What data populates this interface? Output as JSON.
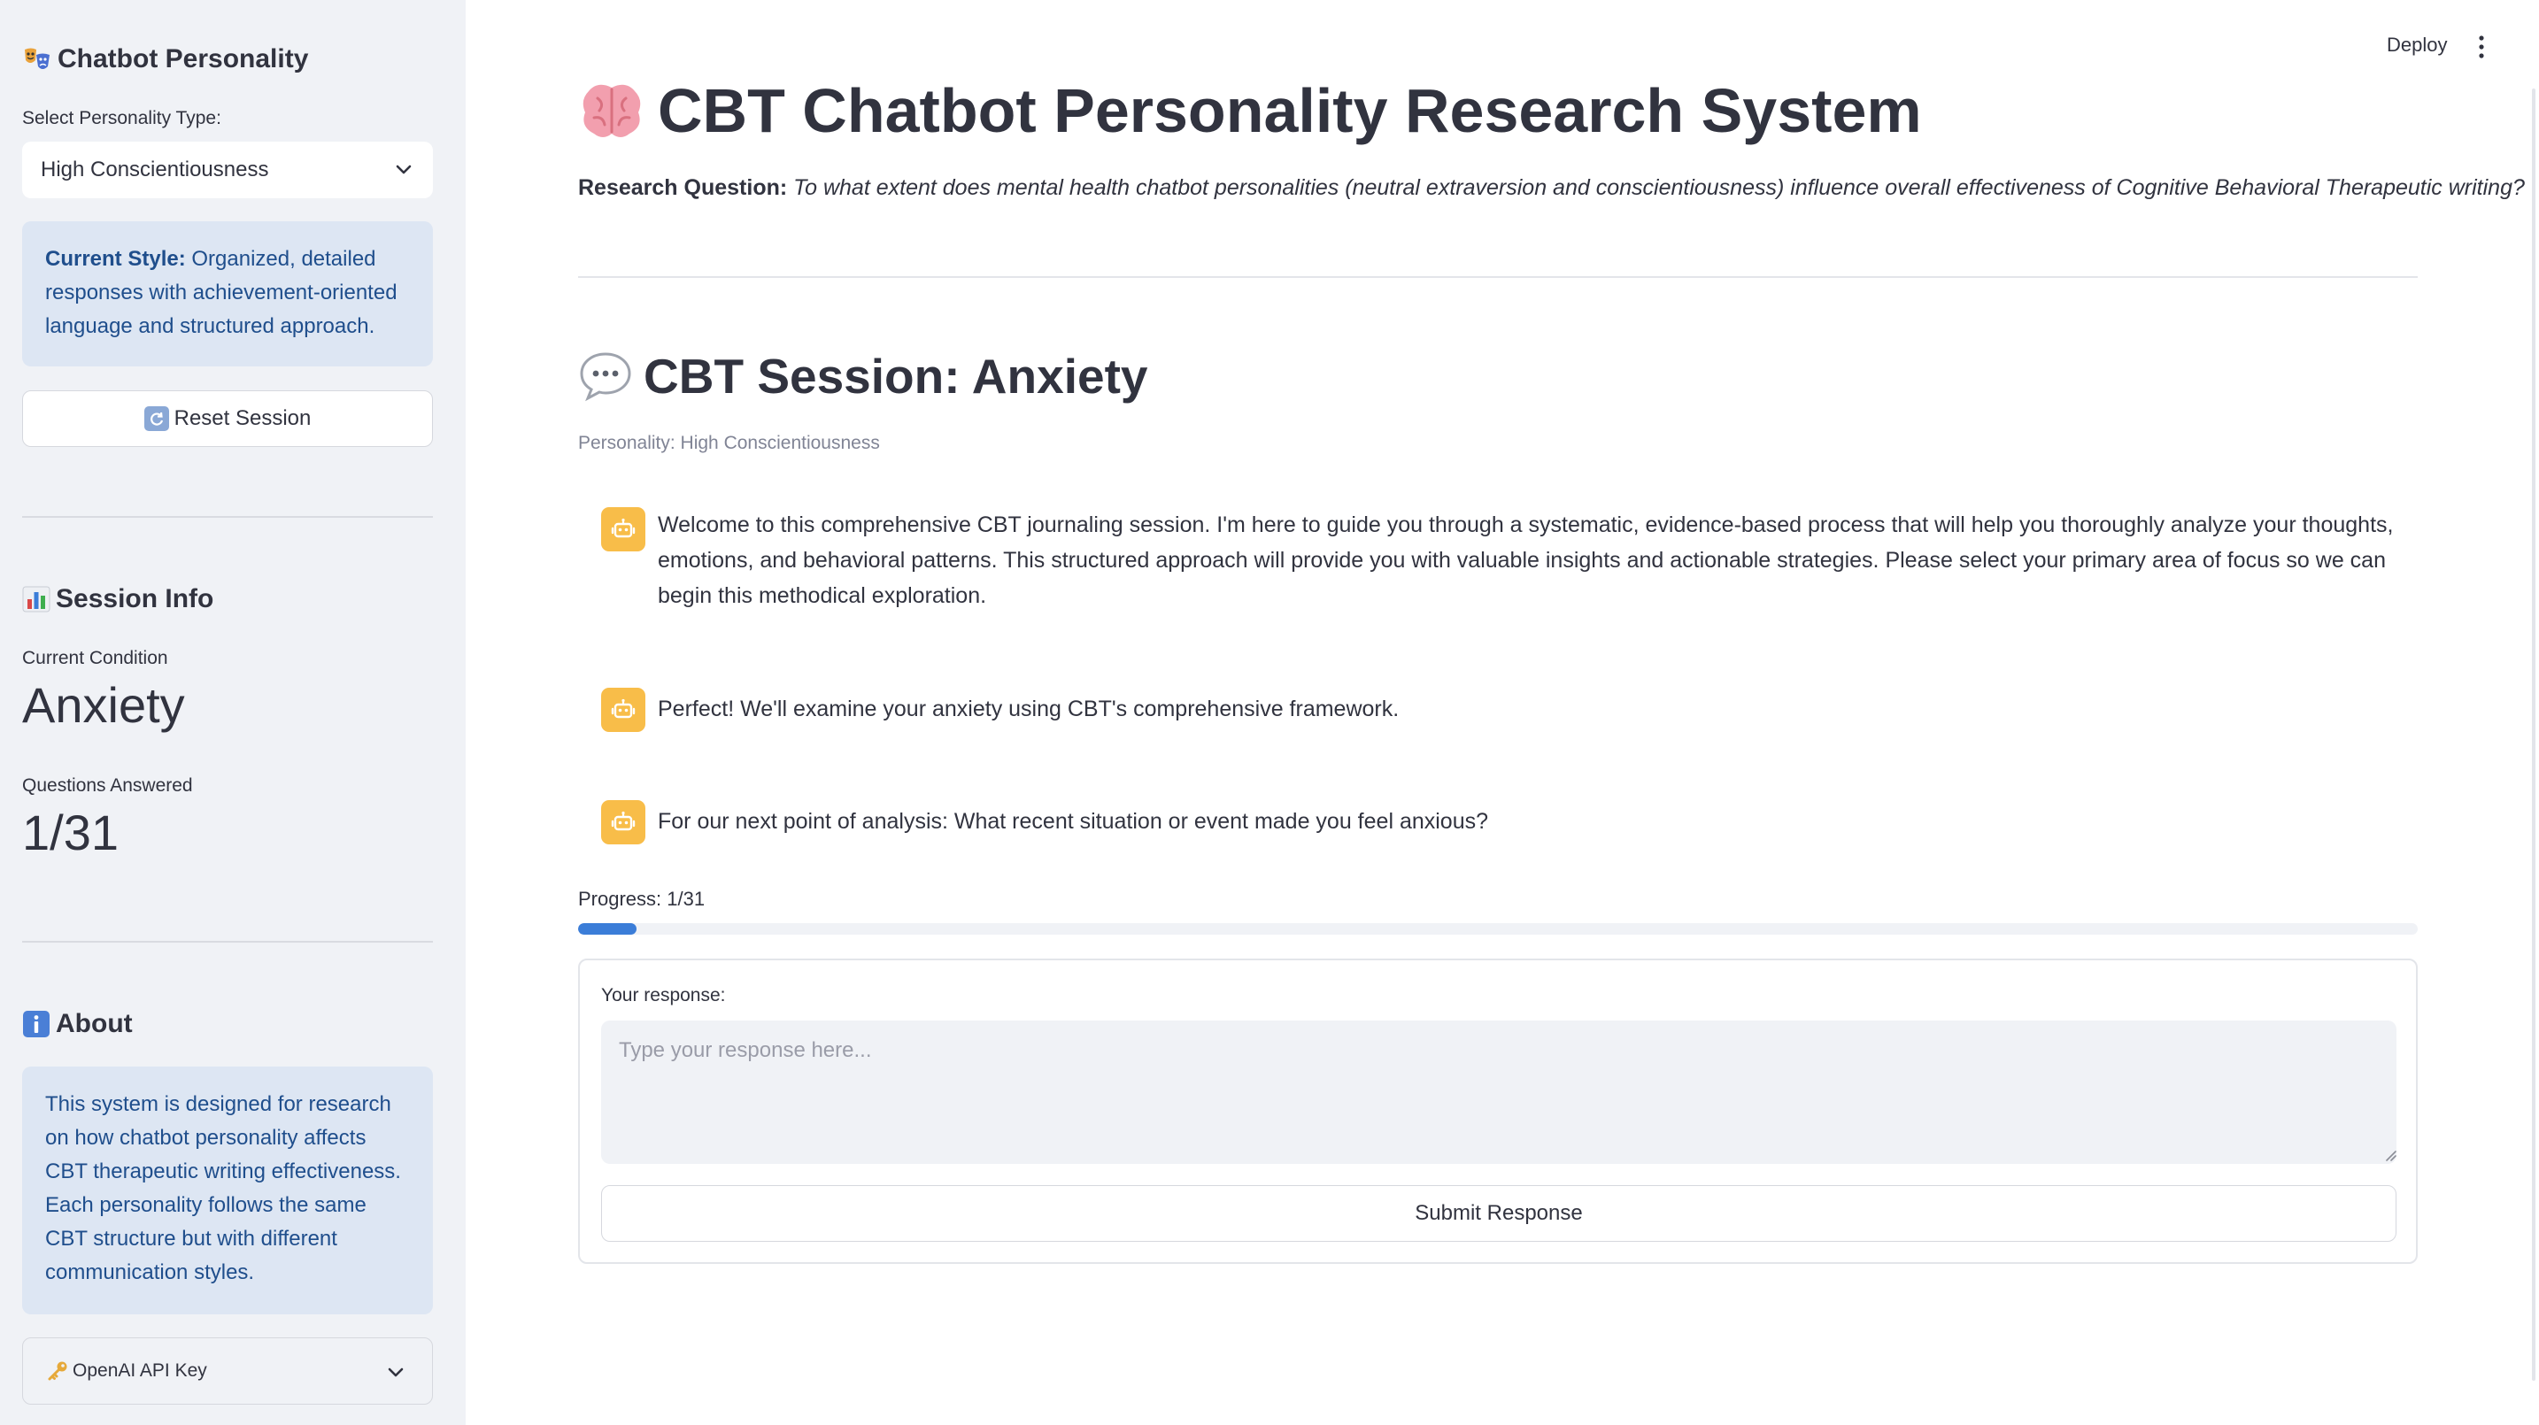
{
  "sidebar": {
    "personality_header": {
      "icon": "theater-masks-icon",
      "title": "Chatbot Personality"
    },
    "select_label": "Select Personality Type:",
    "select_value": "High Conscientiousness",
    "current_style": {
      "label": "Current Style:",
      "text": "Organized, detailed responses with achievement-oriented language and structured approach."
    },
    "reset_button": {
      "icon": "refresh-icon",
      "label": "Reset Session"
    },
    "session_info": {
      "icon": "bar-chart-icon",
      "title": "Session Info",
      "condition_label": "Current Condition",
      "condition_value": "Anxiety",
      "answered_label": "Questions Answered",
      "answered_value": "1/31"
    },
    "about": {
      "icon": "info-icon",
      "title": "About",
      "text": "This system is designed for research on how chatbot personality affects CBT therapeutic writing effectiveness. Each personality follows the same CBT structure but with different communication styles."
    },
    "api_key_expander": {
      "icon": "key-icon",
      "label": "OpenAI API Key"
    }
  },
  "header": {
    "deploy_label": "Deploy",
    "menu_icon": "kebab-menu-icon"
  },
  "main": {
    "title_icon": "brain-icon",
    "title": "CBT Chatbot Personality Research System",
    "research_question_label": "Research Question:",
    "research_question_text": "To what extent does mental health chatbot personalities (neutral extraversion and conscientiousness) influence overall effectiveness of Cognitive Behavioral Therapeutic writing?",
    "session_icon": "speech-bubble-icon",
    "session_title": "CBT Session: Anxiety",
    "personality_caption": "Personality: High Conscientiousness",
    "messages": [
      {
        "avatar": "robot-icon",
        "text": "Welcome to this comprehensive CBT journaling session. I'm here to guide you through a systematic, evidence-based process that will help you thoroughly analyze your thoughts, emotions, and behavioral patterns. This structured approach will provide you with valuable insights and actionable strategies. Please select your primary area of focus so we can begin this methodical exploration."
      },
      {
        "avatar": "robot-icon",
        "text": "Perfect! We'll examine your anxiety using CBT's comprehensive framework."
      },
      {
        "avatar": "robot-icon",
        "text": "For our next point of analysis: What recent situation or event made you feel anxious?"
      }
    ],
    "progress": {
      "label": "Progress: 1/31",
      "fraction": 0.032
    },
    "response_form": {
      "label": "Your response:",
      "placeholder": "Type your response here...",
      "value": "",
      "submit_label": "Submit Response"
    }
  },
  "colors": {
    "sidebar_bg": "#f0f2f6",
    "info_bg": "#dde6f3",
    "info_text": "#1f4e8c",
    "avatar_bg": "#f8bd49",
    "progress_fill": "#3b7dd8",
    "text": "#31333f"
  }
}
